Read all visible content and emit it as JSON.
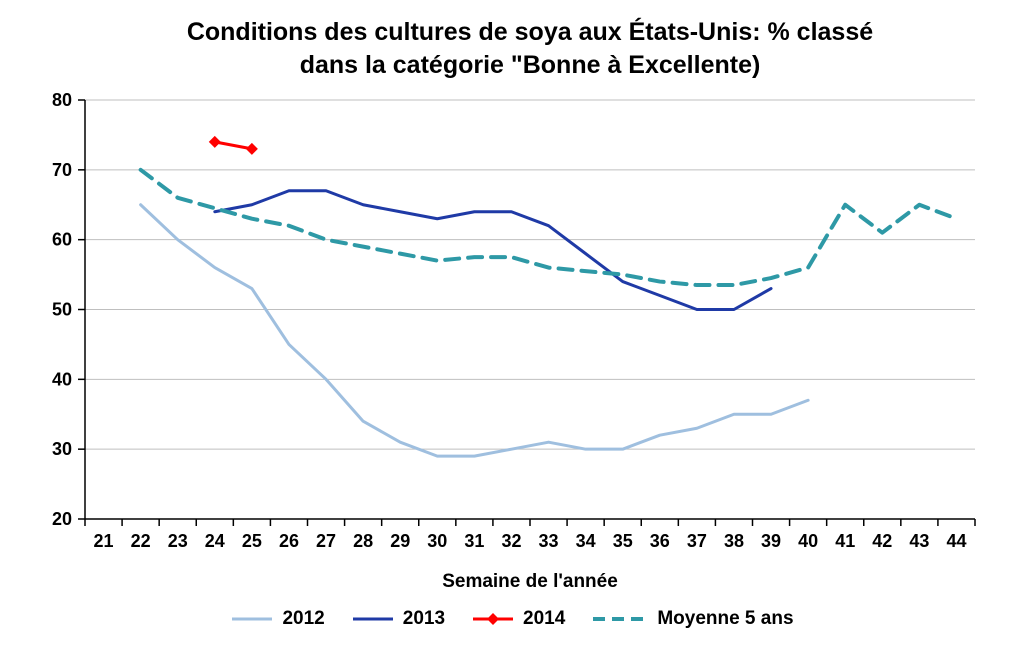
{
  "chart_data": {
    "type": "line",
    "title": "Conditions des cultures de soya aux États-Unis: % classé dans la catégorie \"Bonne à Excellente)",
    "title_lines": [
      "Conditions des cultures de soya aux États-Unis: % classé",
      "dans la catégorie \"Bonne à Excellente)"
    ],
    "xlabel": "Semaine de l'année",
    "ylabel": "",
    "x_ticks": [
      21,
      22,
      23,
      24,
      25,
      26,
      27,
      28,
      29,
      30,
      31,
      32,
      33,
      34,
      35,
      36,
      37,
      38,
      39,
      40,
      41,
      42,
      43,
      44
    ],
    "y_ticks": [
      20,
      30,
      40,
      50,
      60,
      70,
      80
    ],
    "ylim": [
      20,
      80
    ],
    "grid": "horizontal",
    "grid_color": "#bfbfbf",
    "axis_color": "#000000",
    "legend_position": "bottom",
    "series": [
      {
        "name": "2012",
        "color": "#9fbfdf",
        "style": "solid",
        "width": 3,
        "marker": "none",
        "points": [
          [
            22,
            65
          ],
          [
            23,
            60
          ],
          [
            24,
            56
          ],
          [
            25,
            53
          ],
          [
            26,
            45
          ],
          [
            27,
            40
          ],
          [
            28,
            34
          ],
          [
            29,
            31
          ],
          [
            30,
            29
          ],
          [
            31,
            29
          ],
          [
            32,
            30
          ],
          [
            33,
            31
          ],
          [
            34,
            30
          ],
          [
            35,
            30
          ],
          [
            36,
            32
          ],
          [
            37,
            33
          ],
          [
            38,
            35
          ],
          [
            39,
            35
          ],
          [
            40,
            37
          ]
        ]
      },
      {
        "name": "2013",
        "color": "#1f3aa6",
        "style": "solid",
        "width": 3,
        "marker": "none",
        "points": [
          [
            24,
            64
          ],
          [
            25,
            65
          ],
          [
            26,
            67
          ],
          [
            27,
            67
          ],
          [
            28,
            65
          ],
          [
            29,
            64
          ],
          [
            30,
            63
          ],
          [
            31,
            64
          ],
          [
            32,
            64
          ],
          [
            33,
            62
          ],
          [
            34,
            58
          ],
          [
            35,
            54
          ],
          [
            36,
            52
          ],
          [
            37,
            50
          ],
          [
            38,
            50
          ],
          [
            39,
            53
          ]
        ]
      },
      {
        "name": "2014",
        "color": "#ff0000",
        "style": "solid",
        "width": 3,
        "marker": "diamond",
        "points": [
          [
            24,
            74
          ],
          [
            25,
            73
          ]
        ]
      },
      {
        "name": "Moyenne 5 ans",
        "color": "#2e99a6",
        "style": "dashed",
        "width": 4,
        "marker": "none",
        "points": [
          [
            22,
            70
          ],
          [
            23,
            66
          ],
          [
            24,
            64.5
          ],
          [
            25,
            63
          ],
          [
            26,
            62
          ],
          [
            27,
            60
          ],
          [
            28,
            59
          ],
          [
            29,
            58
          ],
          [
            30,
            57
          ],
          [
            31,
            57.5
          ],
          [
            32,
            57.5
          ],
          [
            33,
            56
          ],
          [
            34,
            55.5
          ],
          [
            35,
            55
          ],
          [
            36,
            54
          ],
          [
            37,
            53.5
          ],
          [
            38,
            53.5
          ],
          [
            39,
            54.5
          ],
          [
            40,
            56
          ],
          [
            41,
            65
          ],
          [
            42,
            61
          ],
          [
            43,
            65
          ],
          [
            44,
            63
          ]
        ]
      }
    ]
  }
}
